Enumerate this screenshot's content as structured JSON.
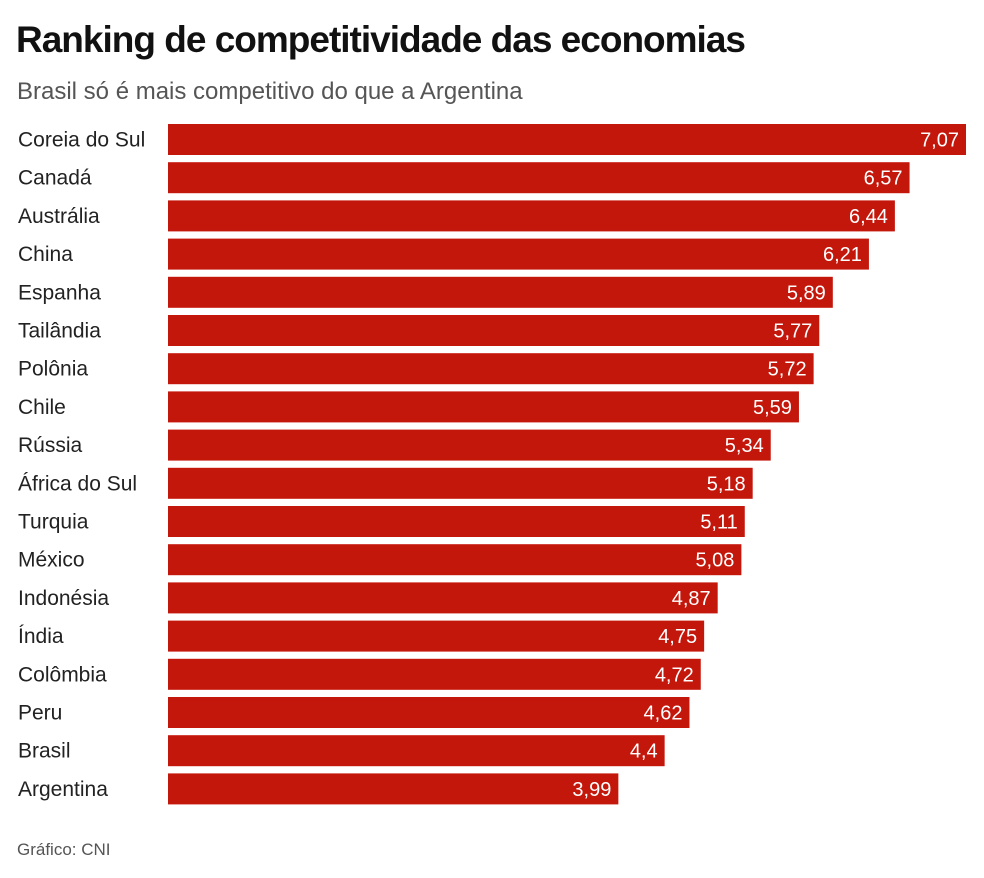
{
  "title": "Ranking de competitividade das economias",
  "subtitle": "Brasil só é mais competitivo do que a Argentina",
  "source": "Gráfico: CNI",
  "colors": {
    "bar": "#c4170c",
    "bar_label": "#ffffff",
    "category_label": "#222222"
  },
  "chart_data": {
    "type": "bar",
    "orientation": "horizontal",
    "categories": [
      "Coreia do Sul",
      "Canadá",
      "Austrália",
      "China",
      "Espanha",
      "Tailândia",
      "Polônia",
      "Chile",
      "Rússia",
      "África do Sul",
      "Turquia",
      "México",
      "Indonésia",
      "Índia",
      "Colômbia",
      "Peru",
      "Brasil",
      "Argentina"
    ],
    "values": [
      7.07,
      6.57,
      6.44,
      6.21,
      5.89,
      5.77,
      5.72,
      5.59,
      5.34,
      5.18,
      5.11,
      5.08,
      4.87,
      4.75,
      4.72,
      4.62,
      4.4,
      3.99
    ],
    "value_labels": [
      "7,07",
      "6,57",
      "6,44",
      "6,21",
      "5,89",
      "5,77",
      "5,72",
      "5,59",
      "5,34",
      "5,18",
      "5,11",
      "5,08",
      "4,87",
      "4,75",
      "4,72",
      "4,62",
      "4,4",
      "3,99"
    ],
    "title": "Ranking de competitividade das economias",
    "xlabel": "",
    "ylabel": "",
    "xlim": [
      0,
      7.07
    ],
    "grid": false,
    "legend": "none"
  }
}
